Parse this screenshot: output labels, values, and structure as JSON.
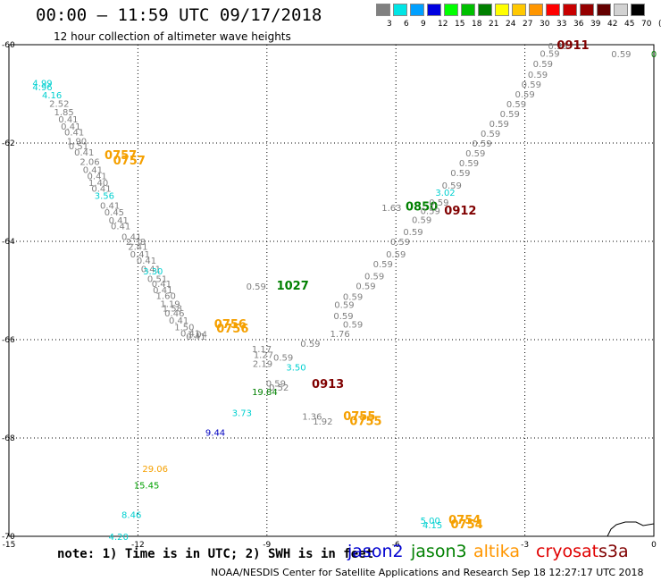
{
  "header": {
    "title": "00:00 — 11:59 UTC 09/17/2018",
    "subtitle": "12 hour collection of altimeter wave heights"
  },
  "color_scale": {
    "labels": [
      "3",
      "6",
      "9",
      "12",
      "15",
      "18",
      "21",
      "24",
      "27",
      "30",
      "33",
      "36",
      "39",
      "42",
      "45",
      "70",
      "(ft)"
    ],
    "colors": [
      "#808080",
      "#00e5e5",
      "#00a0ff",
      "#0000e0",
      "#00ff00",
      "#00c000",
      "#008000",
      "#ffff00",
      "#ffc800",
      "#ff9600",
      "#ff0000",
      "#c80000",
      "#960000",
      "#640000",
      "#d2d2d2",
      "#000000"
    ]
  },
  "chart_data": {
    "type": "scatter",
    "title": "00:00 — 11:59 UTC 09/17/2018",
    "subtitle": "12 hour collection of altimeter wave heights",
    "xlim": [
      -15,
      0
    ],
    "ylim": [
      -70,
      -60
    ],
    "x_ticks": [
      "-15",
      "-12",
      "-9",
      "-6",
      "-3",
      "0"
    ],
    "y_ticks": [
      "-60",
      "-62",
      "-64",
      "-66",
      "-68",
      "-70"
    ],
    "grid": true,
    "points": [
      {
        "x": -14.22,
        "y": -60.77,
        "label": "4.99",
        "color": "#00d0d0"
      },
      {
        "x": -14.22,
        "y": -60.85,
        "label": "4.96",
        "color": "#00d0d0"
      },
      {
        "x": -14.0,
        "y": -61.02,
        "label": "4.16",
        "color": "#00d0d0"
      },
      {
        "x": -13.83,
        "y": -61.19,
        "label": "2.52",
        "color": "#808080"
      },
      {
        "x": -13.72,
        "y": -61.36,
        "label": "1.85",
        "color": "#808080"
      },
      {
        "x": -13.62,
        "y": -61.51,
        "label": "0.41",
        "color": "#808080"
      },
      {
        "x": -13.56,
        "y": -61.65,
        "label": "0.41",
        "color": "#808080"
      },
      {
        "x": -13.48,
        "y": -61.77,
        "label": "0.41",
        "color": "#808080"
      },
      {
        "x": -13.42,
        "y": -61.95,
        "label": "1.90",
        "color": "#808080"
      },
      {
        "x": -13.38,
        "y": -62.05,
        "label": "0.51",
        "color": "#808080"
      },
      {
        "x": -13.25,
        "y": -62.18,
        "label": "0.41",
        "color": "#808080"
      },
      {
        "x": -13.12,
        "y": -62.37,
        "label": "2.06",
        "color": "#808080"
      },
      {
        "x": -13.05,
        "y": -62.54,
        "label": "0.41",
        "color": "#808080"
      },
      {
        "x": -12.95,
        "y": -62.66,
        "label": "0.41",
        "color": "#808080"
      },
      {
        "x": -12.92,
        "y": -62.8,
        "label": "1.40",
        "color": "#808080"
      },
      {
        "x": -12.85,
        "y": -62.92,
        "label": "0.41",
        "color": "#808080"
      },
      {
        "x": -12.78,
        "y": -63.06,
        "label": "3.56",
        "color": "#00d0d0"
      },
      {
        "x": -12.65,
        "y": -63.26,
        "label": "0.41",
        "color": "#808080"
      },
      {
        "x": -12.55,
        "y": -63.4,
        "label": "0.45",
        "color": "#808080"
      },
      {
        "x": -12.45,
        "y": -63.56,
        "label": "0.41",
        "color": "#808080"
      },
      {
        "x": -12.4,
        "y": -63.68,
        "label": "0.41",
        "color": "#808080"
      },
      {
        "x": -12.15,
        "y": -63.9,
        "label": "0.41",
        "color": "#808080"
      },
      {
        "x": -12.05,
        "y": -64.0,
        "label": "2.38",
        "color": "#808080"
      },
      {
        "x": -12.0,
        "y": -64.1,
        "label": "2.41",
        "color": "#808080"
      },
      {
        "x": -11.95,
        "y": -64.25,
        "label": "0.41",
        "color": "#808080"
      },
      {
        "x": -11.8,
        "y": -64.38,
        "label": "0.41",
        "color": "#808080"
      },
      {
        "x": -11.7,
        "y": -64.55,
        "label": "0.41",
        "color": "#808080"
      },
      {
        "x": -11.65,
        "y": -64.6,
        "label": "3.30",
        "color": "#00d0d0"
      },
      {
        "x": -11.55,
        "y": -64.75,
        "label": "0.51",
        "color": "#808080"
      },
      {
        "x": -11.45,
        "y": -64.85,
        "label": "0.41",
        "color": "#808080"
      },
      {
        "x": -11.42,
        "y": -64.98,
        "label": "0.41",
        "color": "#808080"
      },
      {
        "x": -11.35,
        "y": -65.1,
        "label": "1.60",
        "color": "#808080"
      },
      {
        "x": -11.25,
        "y": -65.26,
        "label": "1.19",
        "color": "#808080"
      },
      {
        "x": -11.2,
        "y": -65.35,
        "label": "1.58",
        "color": "#808080"
      },
      {
        "x": -11.15,
        "y": -65.45,
        "label": "0.46",
        "color": "#808080"
      },
      {
        "x": -11.05,
        "y": -65.6,
        "label": "0.41",
        "color": "#808080"
      },
      {
        "x": -10.92,
        "y": -65.74,
        "label": "1.50",
        "color": "#808080"
      },
      {
        "x": -10.78,
        "y": -65.86,
        "label": "0.41",
        "color": "#808080"
      },
      {
        "x": -10.62,
        "y": -65.88,
        "label": "1.04",
        "color": "#808080"
      },
      {
        "x": -10.65,
        "y": -65.93,
        "label": "0.41",
        "color": "#808080"
      },
      {
        "x": -9.85,
        "y": -65.69,
        "label": "0756",
        "color": "#f5a000"
      },
      {
        "x": -9.8,
        "y": -65.78,
        "label": "0756",
        "color": "#f5a000"
      },
      {
        "x": -9.12,
        "y": -66.18,
        "label": "1.17",
        "color": "#808080"
      },
      {
        "x": -9.08,
        "y": -66.3,
        "label": "1.27",
        "color": "#808080"
      },
      {
        "x": -9.1,
        "y": -66.48,
        "label": "2.19",
        "color": "#808080"
      },
      {
        "x": -8.62,
        "y": -66.35,
        "label": "0.59",
        "color": "#808080"
      },
      {
        "x": -7.99,
        "y": -66.07,
        "label": "0.59",
        "color": "#808080"
      },
      {
        "x": -8.32,
        "y": -66.55,
        "label": "3.50",
        "color": "#00d0d0"
      },
      {
        "x": -8.79,
        "y": -66.88,
        "label": "0.59",
        "color": "#808080"
      },
      {
        "x": -8.72,
        "y": -66.96,
        "label": "0.52",
        "color": "#808080"
      },
      {
        "x": -9.05,
        "y": -67.05,
        "label": "19.84",
        "color": "#008000"
      },
      {
        "x": -7.58,
        "y": -66.91,
        "label": "0913",
        "color": "#800000"
      },
      {
        "x": -9.58,
        "y": -67.48,
        "label": "3.73",
        "color": "#00d0d0"
      },
      {
        "x": -10.2,
        "y": -67.88,
        "label": "9.44",
        "color": "#0000c0"
      },
      {
        "x": -7.95,
        "y": -67.55,
        "label": "1.36",
        "color": "#808080"
      },
      {
        "x": -7.7,
        "y": -67.65,
        "label": "1.92",
        "color": "#808080"
      },
      {
        "x": -6.85,
        "y": -67.56,
        "label": "0755",
        "color": "#f5a000"
      },
      {
        "x": -6.7,
        "y": -67.66,
        "label": "0755",
        "color": "#f5a000"
      },
      {
        "x": -9.25,
        "y": -64.91,
        "label": "0.59",
        "color": "#808080"
      },
      {
        "x": -8.4,
        "y": -64.91,
        "label": "1027",
        "color": "#008000"
      },
      {
        "x": -7.3,
        "y": -65.87,
        "label": "1.76",
        "color": "#808080"
      },
      {
        "x": -7.0,
        "y": -65.68,
        "label": "0.59",
        "color": "#808080"
      },
      {
        "x": -7.22,
        "y": -65.51,
        "label": "0.59",
        "color": "#808080"
      },
      {
        "x": -7.2,
        "y": -65.28,
        "label": "0.59",
        "color": "#808080"
      },
      {
        "x": -7.0,
        "y": -65.12,
        "label": "0.59",
        "color": "#808080"
      },
      {
        "x": -6.7,
        "y": -64.9,
        "label": "0.59",
        "color": "#808080"
      },
      {
        "x": -6.5,
        "y": -64.7,
        "label": "0.59",
        "color": "#808080"
      },
      {
        "x": -6.3,
        "y": -64.45,
        "label": "0.59",
        "color": "#808080"
      },
      {
        "x": -6.0,
        "y": -64.25,
        "label": "0.59",
        "color": "#808080"
      },
      {
        "x": -5.9,
        "y": -64.0,
        "label": "0.59",
        "color": "#808080"
      },
      {
        "x": -5.6,
        "y": -63.8,
        "label": "0.59",
        "color": "#808080"
      },
      {
        "x": -5.4,
        "y": -63.55,
        "label": "0.59",
        "color": "#808080"
      },
      {
        "x": -6.1,
        "y": -63.31,
        "label": "1.63",
        "color": "#808080"
      },
      {
        "x": -5.4,
        "y": -63.3,
        "label": "0850",
        "color": "#008000"
      },
      {
        "x": -5.2,
        "y": -63.37,
        "label": "0.59",
        "color": "#808080"
      },
      {
        "x": -5.0,
        "y": -63.2,
        "label": "0.59",
        "color": "#808080"
      },
      {
        "x": -4.85,
        "y": -63.0,
        "label": "3.02",
        "color": "#00d0d0"
      },
      {
        "x": -4.5,
        "y": -63.38,
        "label": "0912",
        "color": "#800000"
      },
      {
        "x": -4.7,
        "y": -62.85,
        "label": "0.59",
        "color": "#808080"
      },
      {
        "x": -4.5,
        "y": -62.6,
        "label": "0.59",
        "color": "#808080"
      },
      {
        "x": -4.3,
        "y": -62.4,
        "label": "0.59",
        "color": "#808080"
      },
      {
        "x": -4.15,
        "y": -62.2,
        "label": "0.59",
        "color": "#808080"
      },
      {
        "x": -4.0,
        "y": -62.0,
        "label": "0.59",
        "color": "#808080"
      },
      {
        "x": -3.8,
        "y": -61.8,
        "label": "0.59",
        "color": "#808080"
      },
      {
        "x": -3.6,
        "y": -61.6,
        "label": "0.59",
        "color": "#808080"
      },
      {
        "x": -3.35,
        "y": -61.4,
        "label": "0.59",
        "color": "#808080"
      },
      {
        "x": -3.2,
        "y": -61.2,
        "label": "0.59",
        "color": "#808080"
      },
      {
        "x": -3.0,
        "y": -61.0,
        "label": "0.59",
        "color": "#808080"
      },
      {
        "x": -2.85,
        "y": -60.8,
        "label": "0.59",
        "color": "#808080"
      },
      {
        "x": -2.7,
        "y": -60.6,
        "label": "0.59",
        "color": "#808080"
      },
      {
        "x": -2.58,
        "y": -60.38,
        "label": "0.59",
        "color": "#808080"
      },
      {
        "x": -2.42,
        "y": -60.17,
        "label": "0.59",
        "color": "#808080"
      },
      {
        "x": -2.23,
        "y": -60.02,
        "label": "0.59",
        "color": "#808080"
      },
      {
        "x": -1.88,
        "y": -60.02,
        "label": "0911",
        "color": "#800000"
      },
      {
        "x": -0.76,
        "y": -60.18,
        "label": "0.59",
        "color": "#808080"
      },
      {
        "x": 0.0,
        "y": -60.18,
        "label": "0",
        "color": "#008000"
      },
      {
        "x": -12.4,
        "y": -62.25,
        "label": "0757",
        "color": "#f5a000"
      },
      {
        "x": -12.2,
        "y": -62.36,
        "label": "0757",
        "color": "#f5a000"
      },
      {
        "x": -11.6,
        "y": -68.62,
        "label": "29.06",
        "color": "#f5a000"
      },
      {
        "x": -11.8,
        "y": -68.95,
        "label": "15.45",
        "color": "#00a000"
      },
      {
        "x": -12.15,
        "y": -69.55,
        "label": "8.46",
        "color": "#00d0d0"
      },
      {
        "x": -12.45,
        "y": -70.0,
        "label": "4.20",
        "color": "#00d0d0"
      },
      {
        "x": -5.2,
        "y": -69.67,
        "label": "5.00",
        "color": "#00d0d0"
      },
      {
        "x": -5.15,
        "y": -69.76,
        "label": "4.15",
        "color": "#00d0d0"
      },
      {
        "x": -4.4,
        "y": -69.67,
        "label": "0754",
        "color": "#f5a000"
      },
      {
        "x": -4.35,
        "y": -69.76,
        "label": "0754",
        "color": "#f5a000"
      }
    ]
  },
  "note": {
    "text": "note: 1) Time is in UTC; 2) SWH is in feet"
  },
  "satellites": [
    {
      "name": "jason2",
      "color": "#0000d0"
    },
    {
      "name": "jason3",
      "color": "#008000"
    },
    {
      "name": "altika",
      "color": "#ff9600"
    },
    {
      "name": "cryosat",
      "color": "#e00000"
    },
    {
      "name": "s3a",
      "color": "#800000"
    }
  ],
  "footer": {
    "text": "NOAA/NESDIS Center for Satellite Applications and Research    Sep 18 12:27:17 UTC 2018"
  }
}
